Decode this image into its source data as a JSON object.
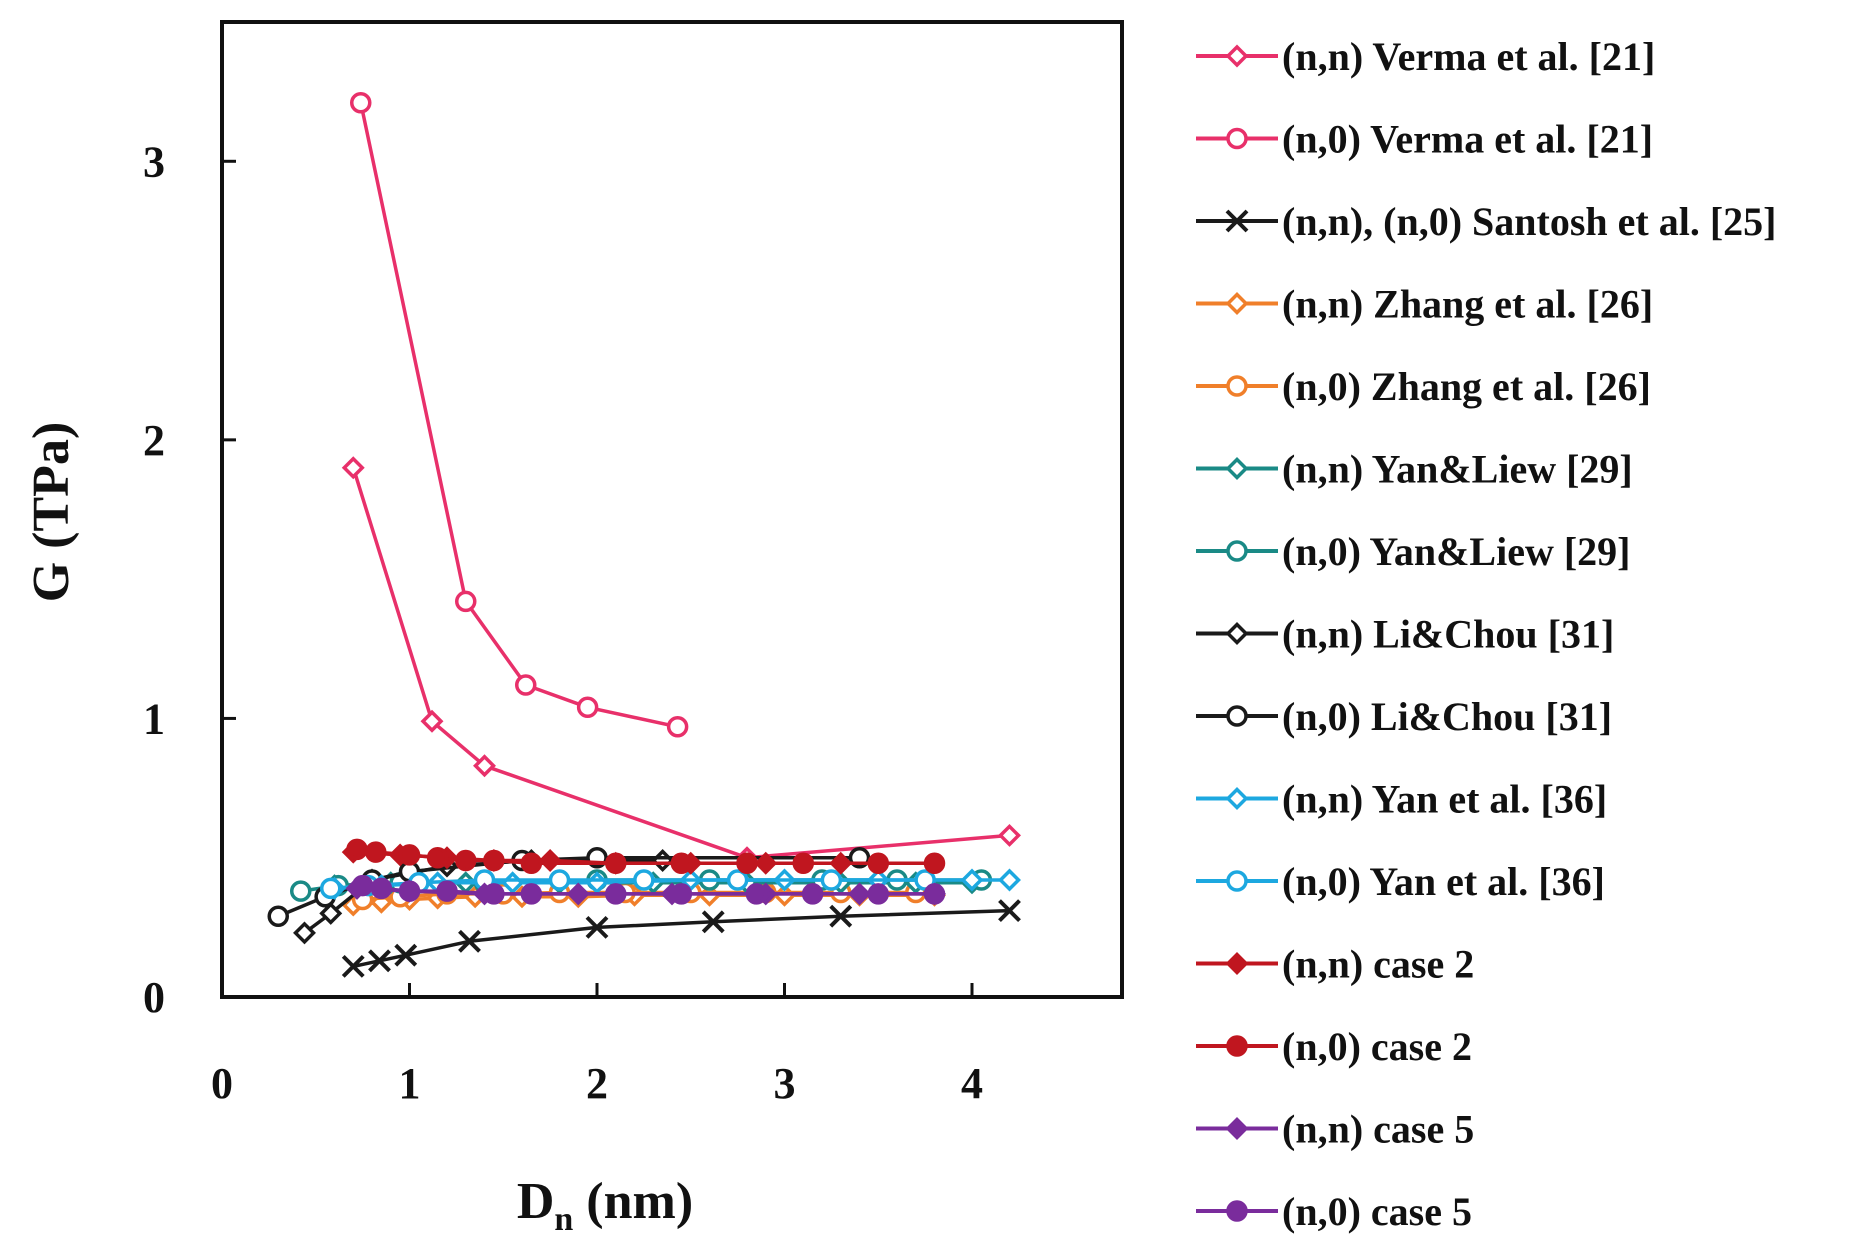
{
  "chart_data": {
    "type": "line",
    "title": "",
    "xlabel": "D",
    "xlabel_subscript": "n",
    "xlabel_units": " (nm)",
    "ylabel": "G (TPa)",
    "xlim": [
      0,
      4.8
    ],
    "ylim": [
      0,
      3.5
    ],
    "xticks": [
      "0",
      "1",
      "2",
      "3",
      "4"
    ],
    "yticks": [
      "0",
      "1",
      "2",
      "3"
    ],
    "grid": false,
    "legend_position": "right",
    "series": [
      {
        "name": "(n,n) Verma et al. [21]",
        "color": "#e8306a",
        "marker": "diamond-open",
        "x": [
          0.7,
          1.12,
          1.4,
          2.8,
          4.2
        ],
        "y": [
          1.9,
          0.99,
          0.83,
          0.5,
          0.58
        ]
      },
      {
        "name": "(n,0) Verma et al. [21]",
        "color": "#e8306a",
        "marker": "circle-open",
        "x": [
          0.74,
          1.3,
          1.62,
          1.95,
          2.43
        ],
        "y": [
          3.21,
          1.42,
          1.12,
          1.04,
          0.97
        ]
      },
      {
        "name": "(n,n), (n,0) Santosh et al. [25]",
        "color": "#1a1a1a",
        "marker": "cross",
        "x": [
          0.7,
          0.84,
          0.98,
          1.32,
          2.0,
          2.62,
          3.3,
          4.2
        ],
        "y": [
          0.11,
          0.13,
          0.15,
          0.2,
          0.25,
          0.27,
          0.29,
          0.31
        ]
      },
      {
        "name": "(n,n) Zhang et al. [26]",
        "color": "#f07f2a",
        "marker": "diamond-open",
        "x": [
          0.7,
          0.85,
          1.0,
          1.15,
          1.35,
          1.6,
          1.9,
          2.2,
          2.6,
          3.0,
          3.4,
          3.8
        ],
        "y": [
          0.33,
          0.34,
          0.35,
          0.355,
          0.36,
          0.36,
          0.36,
          0.365,
          0.365,
          0.365,
          0.365,
          0.365
        ]
      },
      {
        "name": "(n,0) Zhang et al. [26]",
        "color": "#f07f2a",
        "marker": "circle-open",
        "x": [
          0.75,
          0.95,
          1.2,
          1.5,
          1.8,
          2.15,
          2.5,
          2.9,
          3.3,
          3.7
        ],
        "y": [
          0.35,
          0.36,
          0.37,
          0.37,
          0.375,
          0.375,
          0.375,
          0.375,
          0.375,
          0.375
        ]
      },
      {
        "name": "(n,n) Yan&Liew [29]",
        "color": "#1a8a86",
        "marker": "diamond-open",
        "x": [
          0.6,
          0.9,
          1.3,
          1.8,
          2.3,
          2.8,
          3.3,
          3.7,
          4.0
        ],
        "y": [
          0.4,
          0.41,
          0.41,
          0.41,
          0.41,
          0.41,
          0.41,
          0.41,
          0.41
        ]
      },
      {
        "name": "(n,0) Yan&Liew [29]",
        "color": "#1a8a86",
        "marker": "circle-open",
        "x": [
          0.42,
          0.62,
          0.95,
          1.4,
          2.0,
          2.6,
          3.2,
          3.6,
          4.05
        ],
        "y": [
          0.38,
          0.4,
          0.41,
          0.41,
          0.42,
          0.42,
          0.42,
          0.42,
          0.42
        ]
      },
      {
        "name": "(n,n) Li&Chou [31]",
        "color": "#1a1a1a",
        "marker": "diamond-open",
        "x": [
          0.44,
          0.58,
          0.8,
          1.2,
          1.65,
          2.35
        ],
        "y": [
          0.23,
          0.3,
          0.42,
          0.47,
          0.49,
          0.49
        ]
      },
      {
        "name": "(n,0) Li&Chou [31]",
        "color": "#1a1a1a",
        "marker": "circle-open",
        "x": [
          0.3,
          0.55,
          0.8,
          1.0,
          1.6,
          2.0,
          3.4
        ],
        "y": [
          0.29,
          0.36,
          0.42,
          0.45,
          0.49,
          0.5,
          0.5
        ]
      },
      {
        "name": "(n,n) Yan et al. [36]",
        "color": "#1da8e0",
        "marker": "diamond-open",
        "x": [
          0.6,
          0.85,
          1.15,
          1.55,
          2.0,
          2.5,
          3.0,
          3.5,
          4.0,
          4.2
        ],
        "y": [
          0.39,
          0.4,
          0.41,
          0.41,
          0.41,
          0.42,
          0.42,
          0.42,
          0.42,
          0.42
        ]
      },
      {
        "name": "(n,0) Yan et al. [36]",
        "color": "#1da8e0",
        "marker": "circle-open",
        "x": [
          0.58,
          0.78,
          1.05,
          1.4,
          1.8,
          2.25,
          2.75,
          3.25,
          3.75
        ],
        "y": [
          0.39,
          0.4,
          0.41,
          0.42,
          0.42,
          0.42,
          0.42,
          0.42,
          0.42
        ]
      },
      {
        "name": "(n,n) case 2",
        "color": "#c0161f",
        "marker": "diamond-filled",
        "x": [
          0.7,
          0.95,
          1.2,
          1.45,
          1.75,
          2.1,
          2.5,
          2.9,
          3.3
        ],
        "y": [
          0.52,
          0.51,
          0.5,
          0.49,
          0.49,
          0.48,
          0.48,
          0.48,
          0.48
        ]
      },
      {
        "name": "(n,0) case 2",
        "color": "#c0161f",
        "marker": "circle-filled",
        "x": [
          0.72,
          0.82,
          1.0,
          1.15,
          1.3,
          1.45,
          1.65,
          2.1,
          2.45,
          2.8,
          3.1,
          3.5,
          3.8
        ],
        "y": [
          0.53,
          0.52,
          0.51,
          0.5,
          0.49,
          0.49,
          0.48,
          0.48,
          0.48,
          0.48,
          0.48,
          0.48,
          0.48
        ]
      },
      {
        "name": "(n,n) case 5",
        "color": "#7a2c9c",
        "marker": "diamond-filled",
        "x": [
          0.72,
          1.0,
          1.4,
          1.9,
          2.4,
          2.9,
          3.4,
          3.8
        ],
        "y": [
          0.39,
          0.38,
          0.37,
          0.37,
          0.37,
          0.37,
          0.37,
          0.37
        ]
      },
      {
        "name": "(n,0) case 5",
        "color": "#7a2c9c",
        "marker": "circle-filled",
        "x": [
          0.75,
          0.85,
          1.0,
          1.2,
          1.45,
          1.65,
          2.1,
          2.45,
          2.85,
          3.15,
          3.5,
          3.8
        ],
        "y": [
          0.4,
          0.39,
          0.38,
          0.38,
          0.37,
          0.37,
          0.37,
          0.37,
          0.37,
          0.37,
          0.37,
          0.37
        ]
      }
    ]
  }
}
